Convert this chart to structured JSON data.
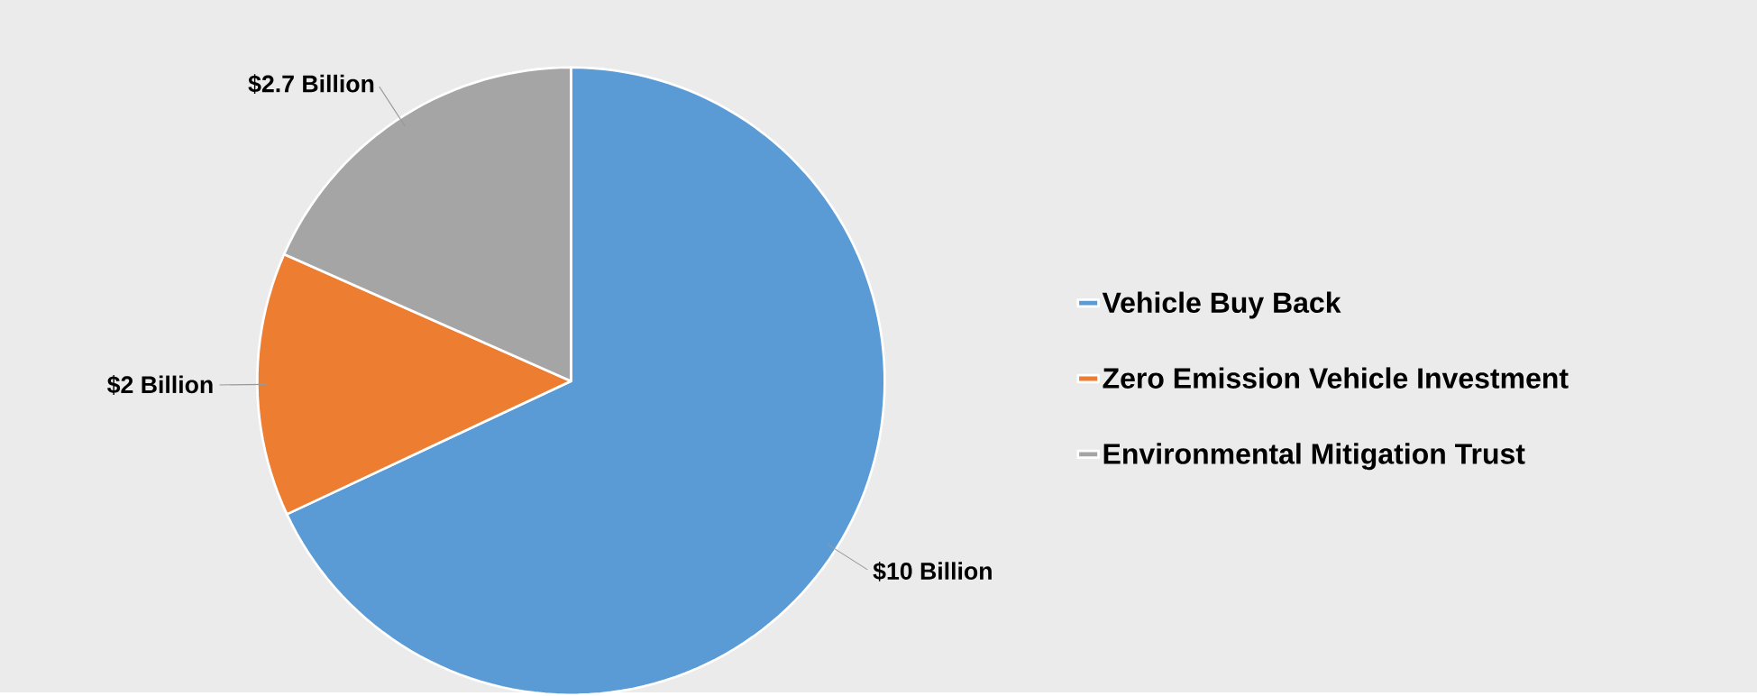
{
  "chart_data": {
    "type": "pie",
    "categories": [
      "Vehicle Buy Back",
      "Zero Emission Vehicle Investment",
      "Environmental Mitigation Trust"
    ],
    "values": [
      10,
      2,
      2.7
    ],
    "colors": [
      "#5b9bd5",
      "#ed7d31",
      "#a5a5a5"
    ],
    "value_labels": [
      "$10 Billion",
      "$2 Billion",
      "$2.7 Billion"
    ],
    "legend": "right"
  }
}
